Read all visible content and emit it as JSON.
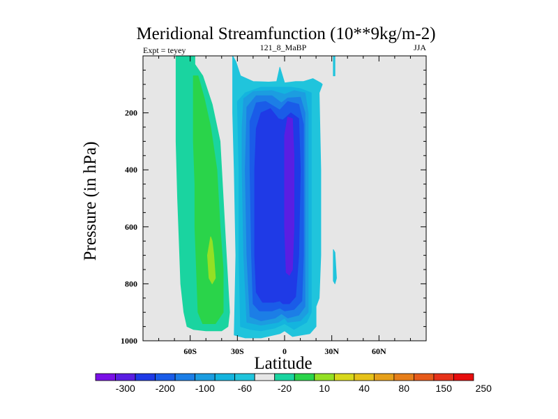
{
  "chart_data": {
    "type": "contour",
    "title": "Meridional Streamfunction (10**9kg/m-2)",
    "subtitle_left": "Expt = teyey",
    "subtitle_center": "121_8_MaBP",
    "subtitle_right": "JJA",
    "xlabel": "Latitude",
    "ylabel": "Pressure (in hPa)",
    "xlim": [
      -90,
      90
    ],
    "ylim": [
      1000,
      0
    ],
    "xticks": [
      -60,
      -30,
      0,
      30,
      60
    ],
    "xtick_labels": [
      "60S",
      "30S",
      "0",
      "30N",
      "60N"
    ],
    "yticks": [
      200,
      400,
      600,
      800,
      1000
    ],
    "ytick_labels": [
      "200",
      "400",
      "600",
      "800",
      "1000"
    ],
    "background_color": "#e6e6e6",
    "regions": [
      {
        "name": "sh-cell-outer",
        "color": "#1ad4a0",
        "level": "10 to 40",
        "points": [
          [
            -69,
            0
          ],
          [
            -57,
            0
          ],
          [
            -57,
            30
          ],
          [
            -52,
            70
          ],
          [
            -46,
            170
          ],
          [
            -41,
            300
          ],
          [
            -39,
            500
          ],
          [
            -37,
            700
          ],
          [
            -36,
            800
          ],
          [
            -35,
            900
          ],
          [
            -36,
            950
          ],
          [
            -40,
            965
          ],
          [
            -50,
            965
          ],
          [
            -58,
            960
          ],
          [
            -62,
            950
          ],
          [
            -64,
            900
          ],
          [
            -66,
            800
          ],
          [
            -67,
            650
          ],
          [
            -68,
            500
          ],
          [
            -69,
            300
          ],
          [
            -69,
            100
          ]
        ]
      },
      {
        "name": "sh-cell-40-80",
        "color": "#2ad44a",
        "level": "40 to 80",
        "points": [
          [
            -58,
            70
          ],
          [
            -55,
            70
          ],
          [
            -51,
            150
          ],
          [
            -47,
            250
          ],
          [
            -43,
            400
          ],
          [
            -41,
            600
          ],
          [
            -39,
            750
          ],
          [
            -39,
            900
          ],
          [
            -44,
            940
          ],
          [
            -52,
            940
          ],
          [
            -55,
            900
          ],
          [
            -56,
            750
          ],
          [
            -57,
            600
          ],
          [
            -57,
            450
          ],
          [
            -58,
            300
          ],
          [
            -58,
            150
          ]
        ]
      },
      {
        "name": "sh-cell-max",
        "color": "#94e024",
        "level": "80 to 120",
        "points": [
          [
            -47,
            635
          ],
          [
            -46,
            650
          ],
          [
            -45,
            700
          ],
          [
            -44,
            780
          ],
          [
            -46,
            800
          ],
          [
            -48,
            780
          ],
          [
            -49,
            700
          ]
        ]
      },
      {
        "name": "tropical-cell-outer",
        "color": "#20c4dc",
        "level": "-20 to 10",
        "points": [
          [
            -33,
            0
          ],
          [
            -31,
            20
          ],
          [
            -28,
            70
          ],
          [
            -20,
            90
          ],
          [
            -10,
            92
          ],
          [
            -5,
            90
          ],
          [
            -3,
            40
          ],
          [
            0,
            95
          ],
          [
            7,
            90
          ],
          [
            12,
            90
          ],
          [
            18,
            80
          ],
          [
            23,
            95
          ],
          [
            24,
            100
          ],
          [
            22,
            130
          ],
          [
            23,
            400
          ],
          [
            23,
            700
          ],
          [
            22,
            850
          ],
          [
            20,
            880
          ],
          [
            20,
            950
          ],
          [
            16,
            975
          ],
          [
            5,
            985
          ],
          [
            0,
            965
          ],
          [
            -3,
            975
          ],
          [
            -15,
            990
          ],
          [
            -25,
            990
          ],
          [
            -32,
            980
          ],
          [
            -31,
            700
          ],
          [
            -32,
            400
          ],
          [
            -33,
            200
          ]
        ]
      },
      {
        "name": "tropical-cell-n20",
        "color": "#14b4de",
        "level": "-60 to -20",
        "points": [
          [
            -30,
            160
          ],
          [
            -25,
            130
          ],
          [
            -15,
            110
          ],
          [
            -4,
            110
          ],
          [
            0,
            110
          ],
          [
            4,
            110
          ],
          [
            10,
            115
          ],
          [
            17,
            130
          ],
          [
            17,
            300
          ],
          [
            17,
            600
          ],
          [
            17,
            900
          ],
          [
            14,
            935
          ],
          [
            6,
            960
          ],
          [
            0,
            940
          ],
          [
            -6,
            955
          ],
          [
            -15,
            965
          ],
          [
            -22,
            960
          ],
          [
            -28,
            950
          ],
          [
            -29,
            700
          ],
          [
            -29,
            400
          ]
        ]
      },
      {
        "name": "tropical-cell-n60",
        "color": "#1c9de0",
        "level": "-100 to -60",
        "points": [
          [
            -26,
            150
          ],
          [
            -20,
            125
          ],
          [
            -8,
            122
          ],
          [
            0,
            135
          ],
          [
            6,
            122
          ],
          [
            13,
            130
          ],
          [
            15,
            200
          ],
          [
            15,
            600
          ],
          [
            15,
            900
          ],
          [
            10,
            930
          ],
          [
            2,
            935
          ],
          [
            0,
            920
          ],
          [
            -4,
            935
          ],
          [
            -15,
            945
          ],
          [
            -24,
            935
          ],
          [
            -26,
            700
          ],
          [
            -27,
            400
          ],
          [
            -27,
            250
          ]
        ]
      },
      {
        "name": "tropical-cell-n100",
        "color": "#1c7ee6",
        "level": "-150 to -100",
        "points": [
          [
            -24,
            180
          ],
          [
            -18,
            140
          ],
          [
            -8,
            140
          ],
          [
            -2,
            165
          ],
          [
            2,
            148
          ],
          [
            10,
            145
          ],
          [
            13,
            200
          ],
          [
            13,
            600
          ],
          [
            13,
            880
          ],
          [
            9,
            910
          ],
          [
            2,
            920
          ],
          [
            -2,
            905
          ],
          [
            -6,
            920
          ],
          [
            -15,
            930
          ],
          [
            -22,
            915
          ],
          [
            -24,
            700
          ],
          [
            -25,
            400
          ]
        ]
      },
      {
        "name": "tropical-cell-n150",
        "color": "#1a5ce8",
        "level": "-200 to -150",
        "points": [
          [
            -22,
            230
          ],
          [
            -18,
            165
          ],
          [
            -12,
            160
          ],
          [
            -3,
            190
          ],
          [
            2,
            160
          ],
          [
            9,
            170
          ],
          [
            12,
            240
          ],
          [
            12,
            700
          ],
          [
            11,
            860
          ],
          [
            6,
            890
          ],
          [
            0,
            895
          ],
          [
            -3,
            885
          ],
          [
            -8,
            895
          ],
          [
            -16,
            895
          ],
          [
            -20,
            870
          ],
          [
            -21,
            700
          ],
          [
            -22,
            400
          ]
        ]
      },
      {
        "name": "tropical-cell-n200",
        "color": "#1f3ae6",
        "level": "-250 to -200",
        "points": [
          [
            -18,
            255
          ],
          [
            -15,
            200
          ],
          [
            -9,
            185
          ],
          [
            -4,
            220
          ],
          [
            -1,
            225
          ],
          [
            4,
            200
          ],
          [
            9,
            220
          ],
          [
            10,
            400
          ],
          [
            9,
            700
          ],
          [
            7,
            845
          ],
          [
            3,
            870
          ],
          [
            -1,
            870
          ],
          [
            -3,
            860
          ],
          [
            -7,
            865
          ],
          [
            -14,
            865
          ],
          [
            -18,
            830
          ],
          [
            -19,
            700
          ],
          [
            -19,
            400
          ]
        ]
      },
      {
        "name": "tropical-cell-min",
        "color": "#5a1ee2",
        "level": "-300 to -250",
        "points": [
          [
            2,
            215
          ],
          [
            5,
            220
          ],
          [
            6,
            350
          ],
          [
            6,
            600
          ],
          [
            5,
            750
          ],
          [
            3,
            770
          ],
          [
            1,
            760
          ],
          [
            0,
            600
          ],
          [
            0,
            400
          ],
          [
            0,
            280
          ]
        ]
      },
      {
        "name": "nh-patch-upper",
        "color": "#20c4dc",
        "level": "-20 to 10",
        "points": [
          [
            31,
            0
          ],
          [
            32,
            0
          ],
          [
            32,
            70
          ],
          [
            31,
            70
          ]
        ]
      },
      {
        "name": "nh-patch-lower",
        "color": "#20c4dc",
        "level": "-20 to 10",
        "points": [
          [
            31,
            680
          ],
          [
            32,
            690
          ],
          [
            33,
            780
          ],
          [
            32,
            800
          ],
          [
            31,
            790
          ],
          [
            31,
            740
          ]
        ]
      }
    ],
    "colorbar": {
      "colors": [
        "#7a10e6",
        "#5a1ee2",
        "#1f3ae6",
        "#1a5ce8",
        "#1c7ee6",
        "#1c9de0",
        "#14b4de",
        "#20c4dc",
        "#e6e6e6",
        "#1ad4a0",
        "#2ad44a",
        "#94e024",
        "#d8d81c",
        "#e6c21a",
        "#e6a01a",
        "#e67e1a",
        "#e65a1a",
        "#e6321a",
        "#e60d0d"
      ],
      "labels": [
        "-300",
        "-200",
        "-100",
        "-60",
        "-20",
        "10",
        "40",
        "80",
        "150",
        "250"
      ]
    }
  }
}
